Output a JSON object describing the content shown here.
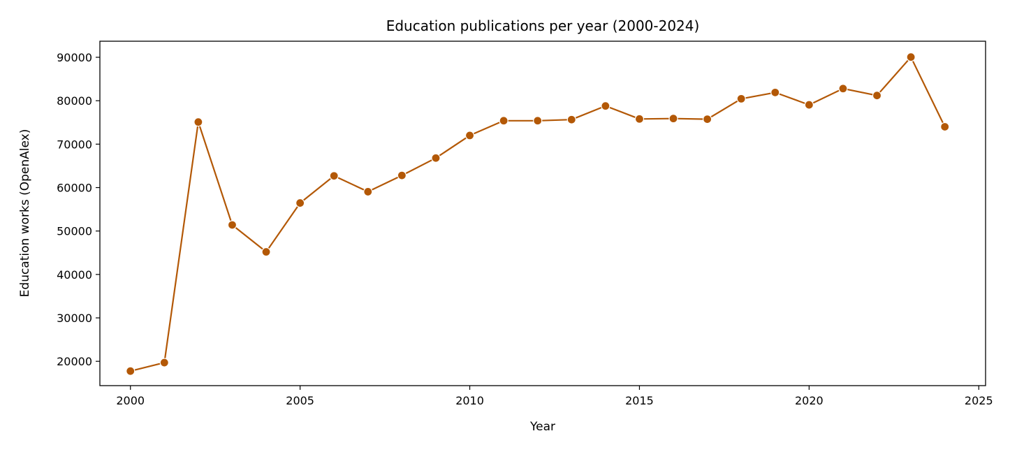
{
  "chart_data": {
    "type": "line",
    "title": "Education publications per year (2000-2024)",
    "xlabel": "Year",
    "ylabel": "Education works (OpenAlex)",
    "x": [
      2000,
      2001,
      2002,
      2003,
      2004,
      2005,
      2006,
      2007,
      2008,
      2009,
      2010,
      2011,
      2012,
      2013,
      2014,
      2015,
      2016,
      2017,
      2018,
      2019,
      2020,
      2021,
      2022,
      2023,
      2024
    ],
    "series": [
      {
        "name": "Education works",
        "color": "#B35806",
        "marker": "circle",
        "values": [
          17750,
          19700,
          75100,
          51400,
          45200,
          56450,
          62700,
          59050,
          62800,
          66800,
          72000,
          75400,
          75400,
          75650,
          78800,
          75800,
          75900,
          75750,
          80450,
          81900,
          79050,
          82800,
          81200,
          90050,
          74000
        ]
      }
    ],
    "xticks": [
      2000,
      2005,
      2010,
      2015,
      2020,
      2025
    ],
    "yticks": [
      20000,
      30000,
      40000,
      50000,
      60000,
      70000,
      80000,
      90000
    ],
    "xlim": [
      1999.1,
      2025.2
    ],
    "ylim": [
      14400,
      93700
    ],
    "grid": false,
    "legend": false
  }
}
